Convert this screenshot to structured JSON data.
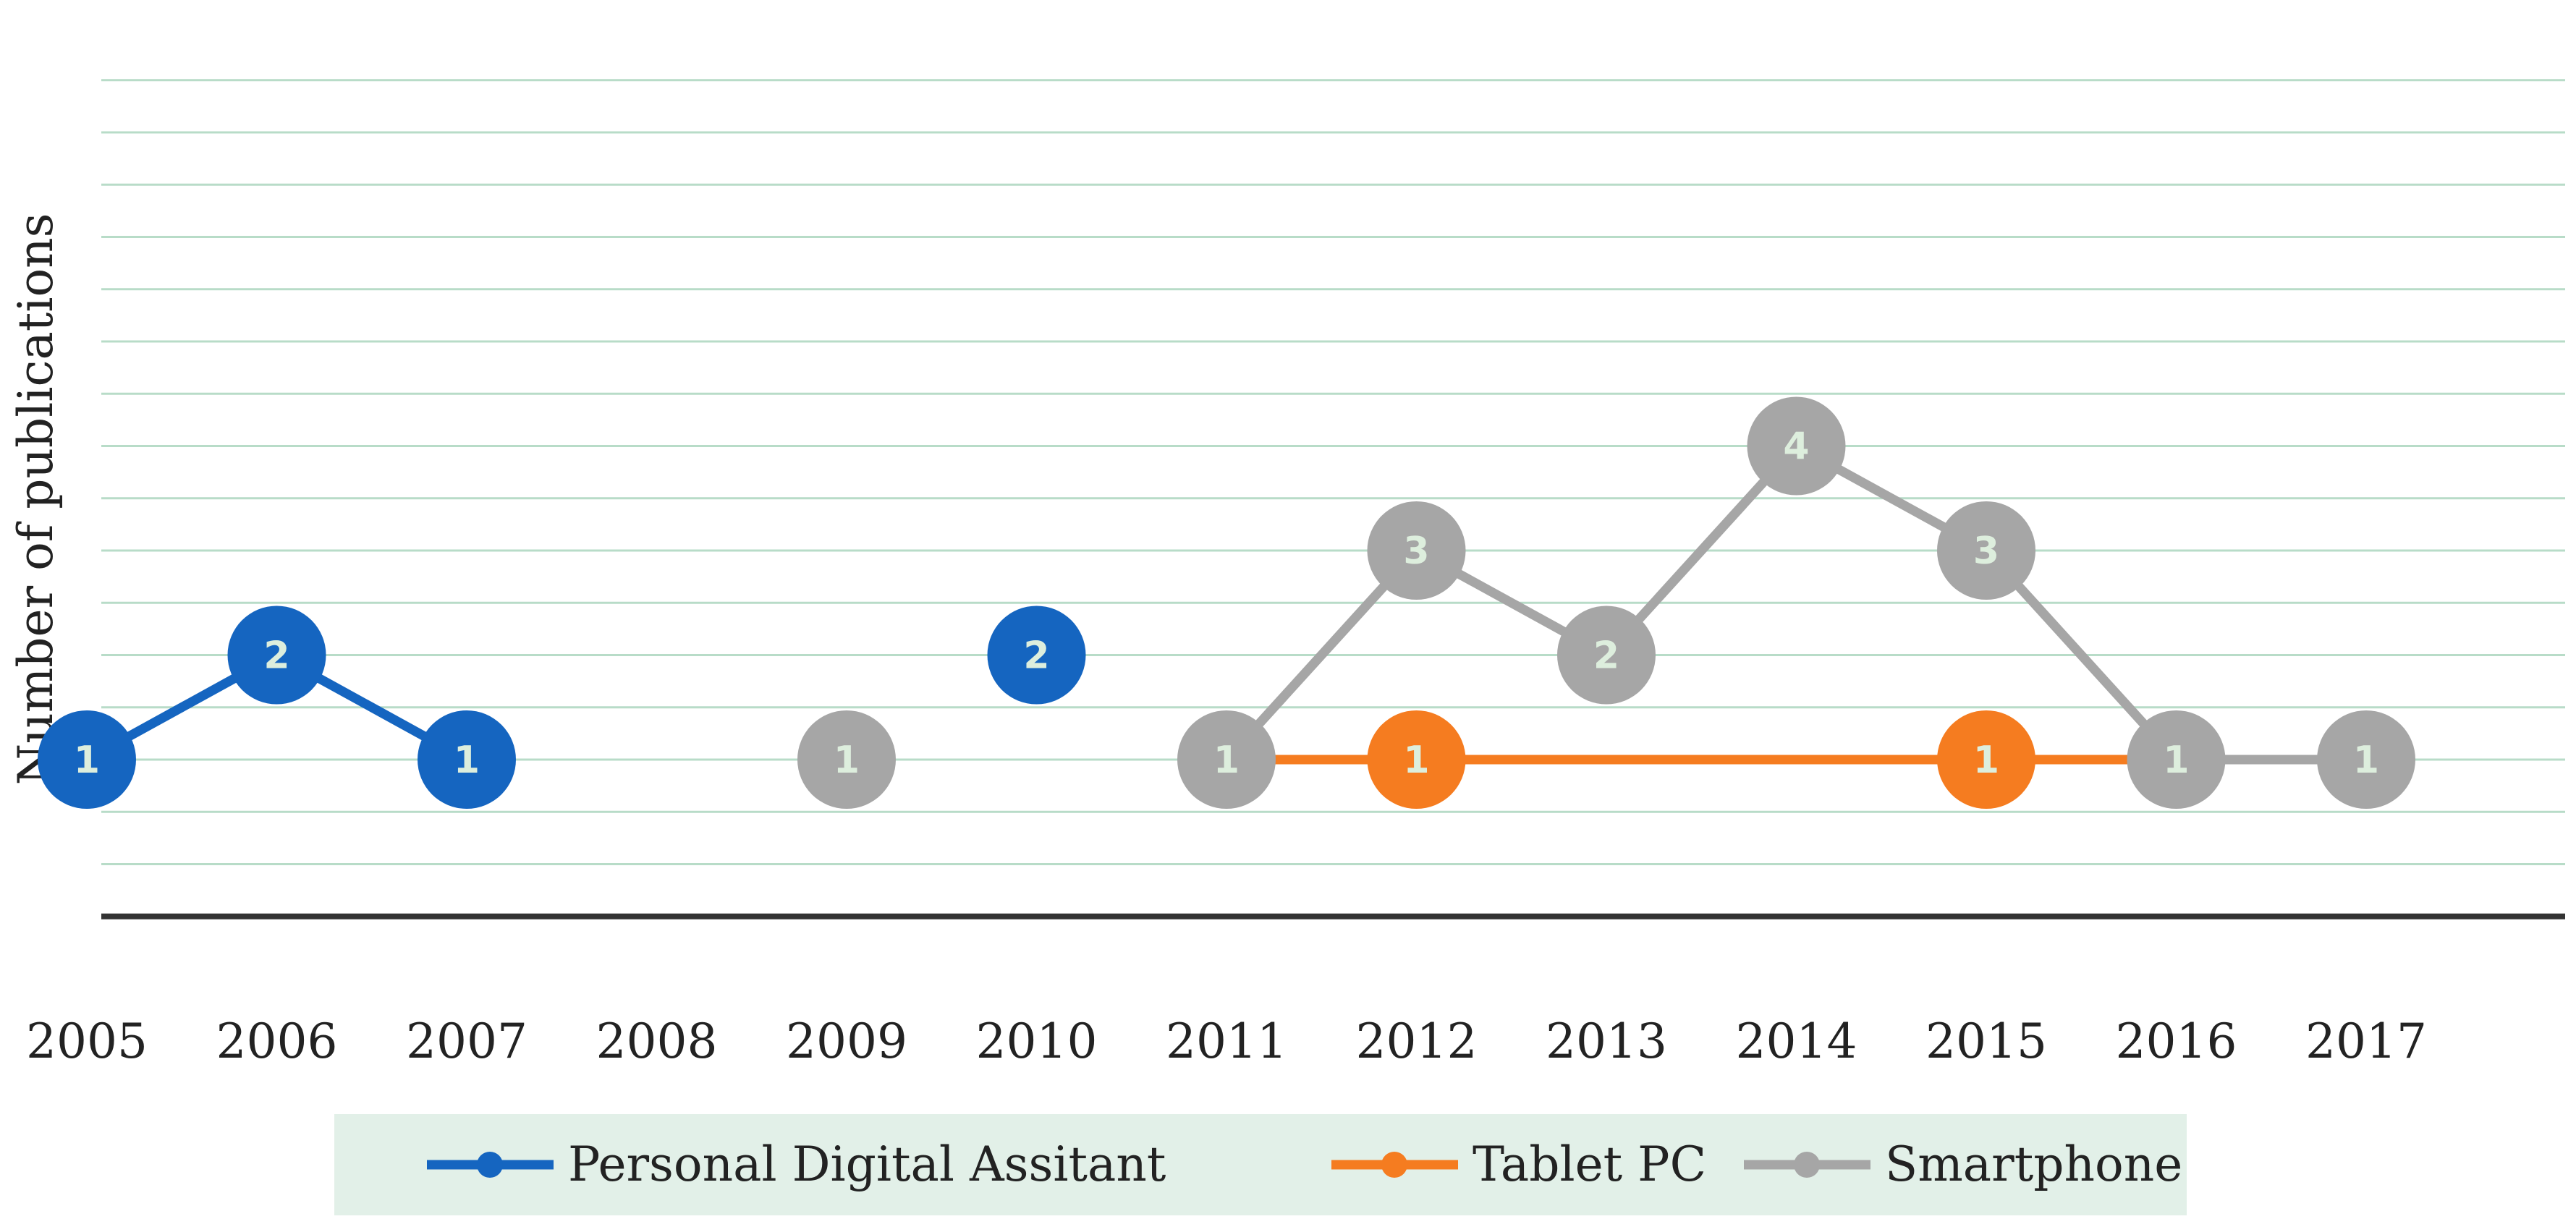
{
  "chart_data": {
    "type": "line",
    "title": "",
    "xlabel": "",
    "ylabel": "Number of publications",
    "ylim": [
      -0.5,
      7.5
    ],
    "grid": true,
    "legend_position": "bottom",
    "categories": [
      "2005",
      "2006",
      "2007",
      "2008",
      "2009",
      "2010",
      "2011",
      "2012",
      "2013",
      "2014",
      "2015",
      "2016",
      "2017"
    ],
    "series": [
      {
        "name": "Personal Digital Assitant",
        "color": "#1565C0",
        "values": [
          1,
          2,
          1,
          null,
          null,
          2,
          null,
          null,
          null,
          null,
          null,
          null,
          null
        ]
      },
      {
        "name": "Tablet PC",
        "color": "#F57C20",
        "values": [
          null,
          null,
          null,
          null,
          1,
          null,
          1,
          1,
          1,
          1,
          1,
          1,
          1
        ],
        "markers": [
          false,
          false,
          false,
          false,
          false,
          false,
          false,
          true,
          false,
          false,
          true,
          false,
          false
        ]
      },
      {
        "name": "Smartphone",
        "color": "#A6A6A6",
        "values": [
          null,
          null,
          null,
          null,
          1,
          null,
          1,
          3,
          2,
          4,
          3,
          1,
          1
        ]
      }
    ],
    "label_text_color": "#DDEEDD",
    "gridline_color": "#B8DCC8",
    "axis_color": "#333333",
    "legend_background": "#E2F0E8"
  }
}
